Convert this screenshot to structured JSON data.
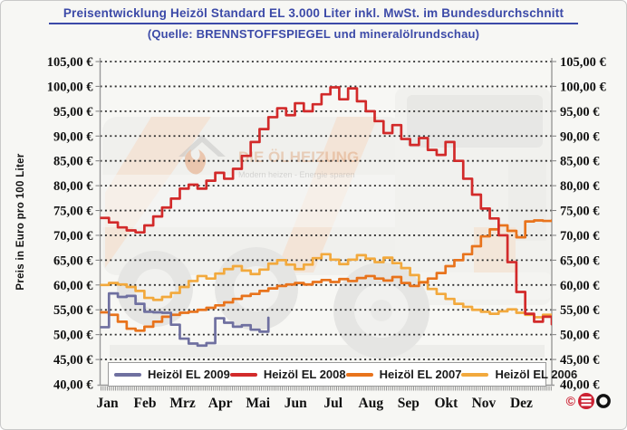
{
  "header": {
    "title": "Preisentwicklung Heizöl Standard EL 3.000 Liter inkl. MwSt. im Bundesdurchschnitt",
    "subtitle": "(Quelle: BRENNSTOFFSPIEGEL und mineralölrundschau)"
  },
  "chart_data": {
    "type": "line",
    "title": "Preisentwicklung Heizöl Standard EL 3.000 Liter inkl. MwSt. im Bundesdurchschnitt",
    "subtitle": "(Quelle: BRENNSTOFFSPIEGEL und mineralölrundschau)",
    "ylabel": "Preis in Euro pro 100 Liter",
    "xlabel": "",
    "categories": [
      "Jan",
      "Feb",
      "Mrz",
      "Apr",
      "Mai",
      "Jun",
      "Jul",
      "Aug",
      "Sep",
      "Okt",
      "Nov",
      "Dez"
    ],
    "x_resolution": "weekly",
    "ylim": [
      40,
      105
    ],
    "y_step": 5,
    "y_tick_labels": [
      "105,00 €",
      "100,00 €",
      "95,00 €",
      "90,00 €",
      "85,00 €",
      "80,00 €",
      "75,00 €",
      "70,00 €",
      "65,00 €",
      "60,00 €",
      "55,00 €",
      "50,00 €",
      "45,00 €",
      "40,00 €"
    ],
    "grid": "horizontal dotted",
    "legend_position": "bottom inside",
    "series": [
      {
        "name": "Heizöl EL 2009",
        "color": "#6f70a0",
        "values": [
          51.5,
          58.3,
          57.6,
          57.8,
          56.2,
          54.6,
          54.5,
          54.4,
          52.0,
          49.2,
          48.2,
          47.8,
          48.3,
          53.3,
          52.4,
          51.6,
          51.9,
          51.0,
          50.6,
          53.4
        ]
      },
      {
        "name": "Heizöl EL 2008",
        "color": "#d22a2a",
        "values": [
          73.5,
          72.6,
          71.6,
          71.0,
          70.6,
          72.0,
          73.8,
          75.6,
          77.4,
          79.4,
          80.2,
          79.4,
          81.0,
          82.6,
          81.4,
          83.4,
          86.0,
          88.8,
          91.4,
          93.8,
          95.6,
          94.2,
          96.6,
          95.0,
          96.4,
          98.4,
          99.8,
          97.4,
          99.6,
          97.0,
          95.0,
          93.0,
          90.6,
          92.2,
          89.4,
          88.2,
          89.6,
          87.2,
          86.2,
          88.8,
          85.0,
          81.4,
          78.2,
          75.4,
          73.4,
          70.0,
          64.6,
          58.6,
          54.2,
          52.6,
          53.6,
          52.1
        ]
      },
      {
        "name": "Heizöl EL 2007",
        "color": "#e8731c",
        "values": [
          54.5,
          54.0,
          52.6,
          51.2,
          50.8,
          51.6,
          52.6,
          53.6,
          54.0,
          54.4,
          54.6,
          55.0,
          55.4,
          55.9,
          56.5,
          57.2,
          57.8,
          58.2,
          58.8,
          59.3,
          59.8,
          60.1,
          60.4,
          60.1,
          60.6,
          61.0,
          60.6,
          61.2,
          60.8,
          61.4,
          61.8,
          61.3,
          60.9,
          61.6,
          60.4,
          59.8,
          60.5,
          61.3,
          62.4,
          63.8,
          65.0,
          66.2,
          67.8,
          69.8,
          71.2,
          72.0,
          70.9,
          69.6,
          72.8,
          73.0,
          72.9,
          73.0
        ]
      },
      {
        "name": "Heizöl EL 2006",
        "color": "#f2a93d",
        "values": [
          60.0,
          60.4,
          60.1,
          59.6,
          58.8,
          57.4,
          57.0,
          57.6,
          58.4,
          59.6,
          60.8,
          61.8,
          61.3,
          62.3,
          63.2,
          63.8,
          62.9,
          62.2,
          63.1,
          64.3,
          65.0,
          64.1,
          63.2,
          64.1,
          65.4,
          66.2,
          65.1,
          64.2,
          65.1,
          66.0,
          65.3,
          64.6,
          65.5,
          64.4,
          63.4,
          62.0,
          60.6,
          59.2,
          58.2,
          57.2,
          56.2,
          55.6,
          55.0,
          54.6,
          54.2,
          54.7,
          55.1,
          54.4,
          54.0,
          53.5,
          54.0,
          53.6
        ]
      }
    ],
    "watermark": {
      "brand": "DIE ÖLHEIZUNG",
      "tagline": "Modern heizen - Energie sparen",
      "description": "faded tanker truck photo behind plot"
    }
  },
  "footer": {
    "copyright_mark": "©"
  }
}
